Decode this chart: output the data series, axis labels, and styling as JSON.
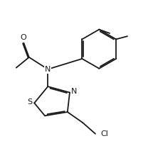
{
  "bg_color": "#ffffff",
  "line_color": "#1a1a1a",
  "line_width": 1.3,
  "font_size": 8.0,
  "figsize": [
    2.15,
    2.23
  ],
  "dpi": 100,
  "xlim": [
    0,
    10
  ],
  "ylim": [
    0,
    10.4
  ]
}
